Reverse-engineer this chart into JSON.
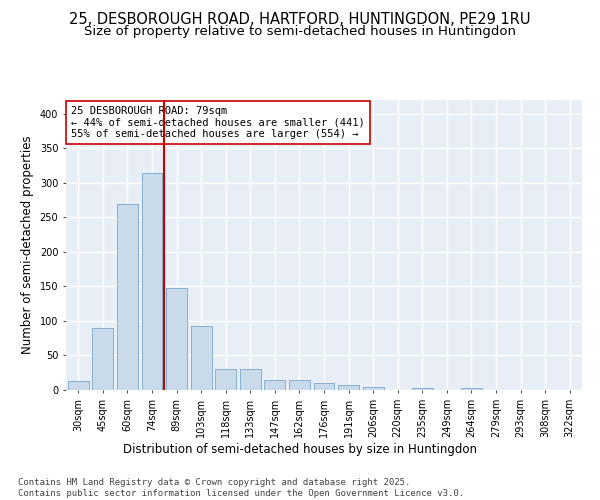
{
  "title_line1": "25, DESBOROUGH ROAD, HARTFORD, HUNTINGDON, PE29 1RU",
  "title_line2": "Size of property relative to semi-detached houses in Huntingdon",
  "xlabel": "Distribution of semi-detached houses by size in Huntingdon",
  "ylabel": "Number of semi-detached properties",
  "categories": [
    "30sqm",
    "45sqm",
    "60sqm",
    "74sqm",
    "89sqm",
    "103sqm",
    "118sqm",
    "133sqm",
    "147sqm",
    "162sqm",
    "176sqm",
    "191sqm",
    "206sqm",
    "220sqm",
    "235sqm",
    "249sqm",
    "264sqm",
    "279sqm",
    "293sqm",
    "308sqm",
    "322sqm"
  ],
  "values": [
    13,
    90,
    270,
    315,
    148,
    93,
    31,
    31,
    14,
    14,
    10,
    7,
    5,
    0,
    3,
    0,
    3,
    0,
    0,
    0,
    0
  ],
  "bar_color": "#c9daea",
  "bar_edge_color": "#7aa8cc",
  "vline_color": "#cc0000",
  "vline_pos": 3.5,
  "annotation_text": "25 DESBOROUGH ROAD: 79sqm\n← 44% of semi-detached houses are smaller (441)\n55% of semi-detached houses are larger (554) →",
  "annotation_box_facecolor": "#ffffff",
  "annotation_box_edgecolor": "#cc0000",
  "ylim": [
    0,
    420
  ],
  "yticks": [
    0,
    50,
    100,
    150,
    200,
    250,
    300,
    350,
    400
  ],
  "footer": "Contains HM Land Registry data © Crown copyright and database right 2025.\nContains public sector information licensed under the Open Government Licence v3.0.",
  "bg_color": "#ffffff",
  "plot_bg_color": "#e8eef5",
  "grid_color": "#ffffff",
  "title_fontsize": 10.5,
  "subtitle_fontsize": 9.5,
  "axis_label_fontsize": 8.5,
  "tick_fontsize": 7,
  "annotation_fontsize": 7.5,
  "footer_fontsize": 6.5
}
